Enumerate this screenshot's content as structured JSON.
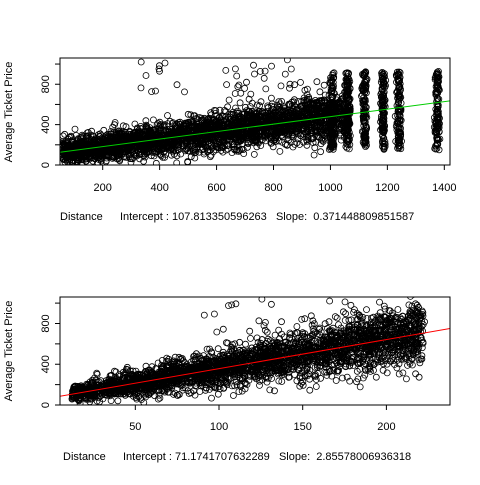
{
  "chart_data": [
    {
      "type": "scatter",
      "title": "",
      "xlabel": "Distance",
      "ylabel": "Average Ticket Price",
      "xlim": [
        50,
        1420
      ],
      "ylim": [
        0,
        1060
      ],
      "xticks": [
        200,
        400,
        600,
        800,
        1000,
        1200,
        1400
      ],
      "yticks": [
        0,
        400,
        800
      ],
      "ytick_labels": [
        "0",
        "400",
        "800"
      ],
      "minor_yticks": [
        200,
        600,
        1000
      ],
      "caption": "Intercept : 107.813350596263   Slope:  0.371448809851587",
      "fit": {
        "intercept": 107.813350596263,
        "slope": 0.371448809851587,
        "color": "#00cc00"
      },
      "point_color": "#000000",
      "grid": false,
      "legend": "none"
    },
    {
      "type": "scatter",
      "title": "",
      "xlabel": "Distance",
      "ylabel": "Average Ticket Price",
      "xlim": [
        5,
        238
      ],
      "ylim": [
        0,
        1060
      ],
      "xticks": [
        50,
        100,
        150,
        200
      ],
      "yticks": [
        0,
        400,
        800
      ],
      "ytick_labels": [
        "0",
        "400",
        "800"
      ],
      "minor_yticks": [
        200,
        600,
        1000
      ],
      "caption": "Intercept : 71.1741707632289   Slope:  2.85578006936318",
      "fit": {
        "intercept": 71.1741707632289,
        "slope": 2.85578006936318,
        "color": "#ff0000"
      },
      "point_color": "#000000",
      "grid": false,
      "legend": "none"
    }
  ]
}
